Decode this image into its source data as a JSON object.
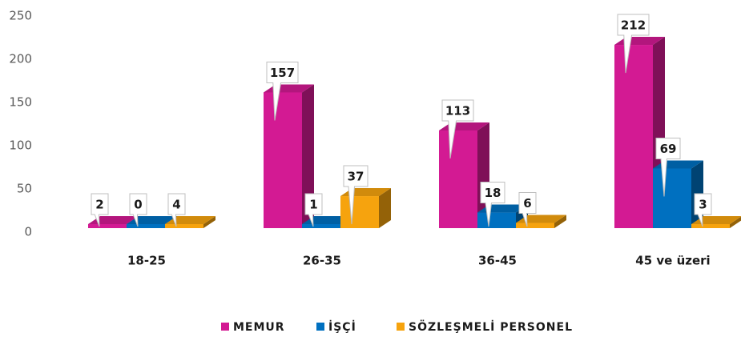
{
  "chart_data": {
    "type": "bar3d",
    "categories": [
      "18-25",
      "26-35",
      "36-45",
      "45 ve üzeri"
    ],
    "series": [
      {
        "name": "MEMUR",
        "color": "#d31a93",
        "values": [
          2,
          157,
          113,
          212
        ]
      },
      {
        "name": "İŞÇİ",
        "color": "#0070c0",
        "values": [
          0,
          1,
          18,
          69
        ]
      },
      {
        "name": "SÖZLEŞMELİ PERSONEL",
        "color": "#f6a30e",
        "values": [
          4,
          37,
          6,
          3
        ]
      }
    ],
    "ylim": [
      0,
      250
    ],
    "yticks": [
      0,
      50,
      100,
      150,
      200,
      250
    ],
    "grid": false,
    "legend": "bottom"
  }
}
